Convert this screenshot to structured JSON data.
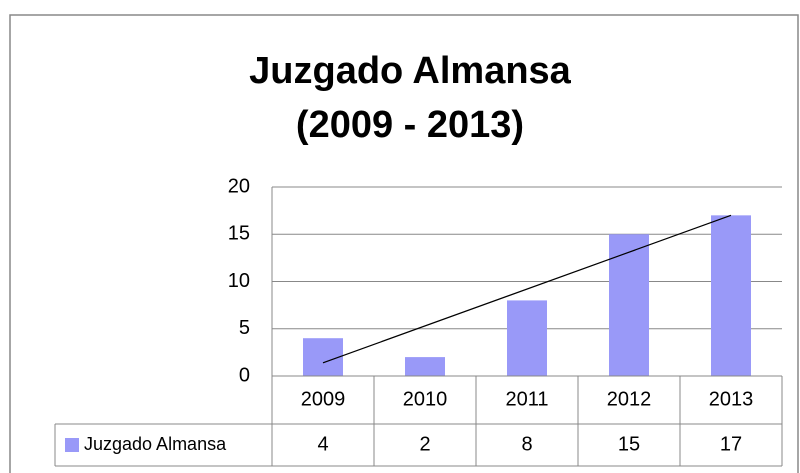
{
  "chart_data": {
    "type": "bar",
    "title": "Juzgado Almansa",
    "subtitle": "(2009 - 2013)",
    "categories": [
      "2009",
      "2010",
      "2011",
      "2012",
      "2013"
    ],
    "series": [
      {
        "name": "Juzgado Almansa",
        "color": "#9999f8",
        "values": [
          4,
          2,
          8,
          15,
          17
        ]
      }
    ],
    "ylim": [
      0,
      20
    ],
    "yticks": [
      0,
      5,
      10,
      15,
      20
    ],
    "grid": true,
    "trendline": "linear",
    "data_table": true
  }
}
